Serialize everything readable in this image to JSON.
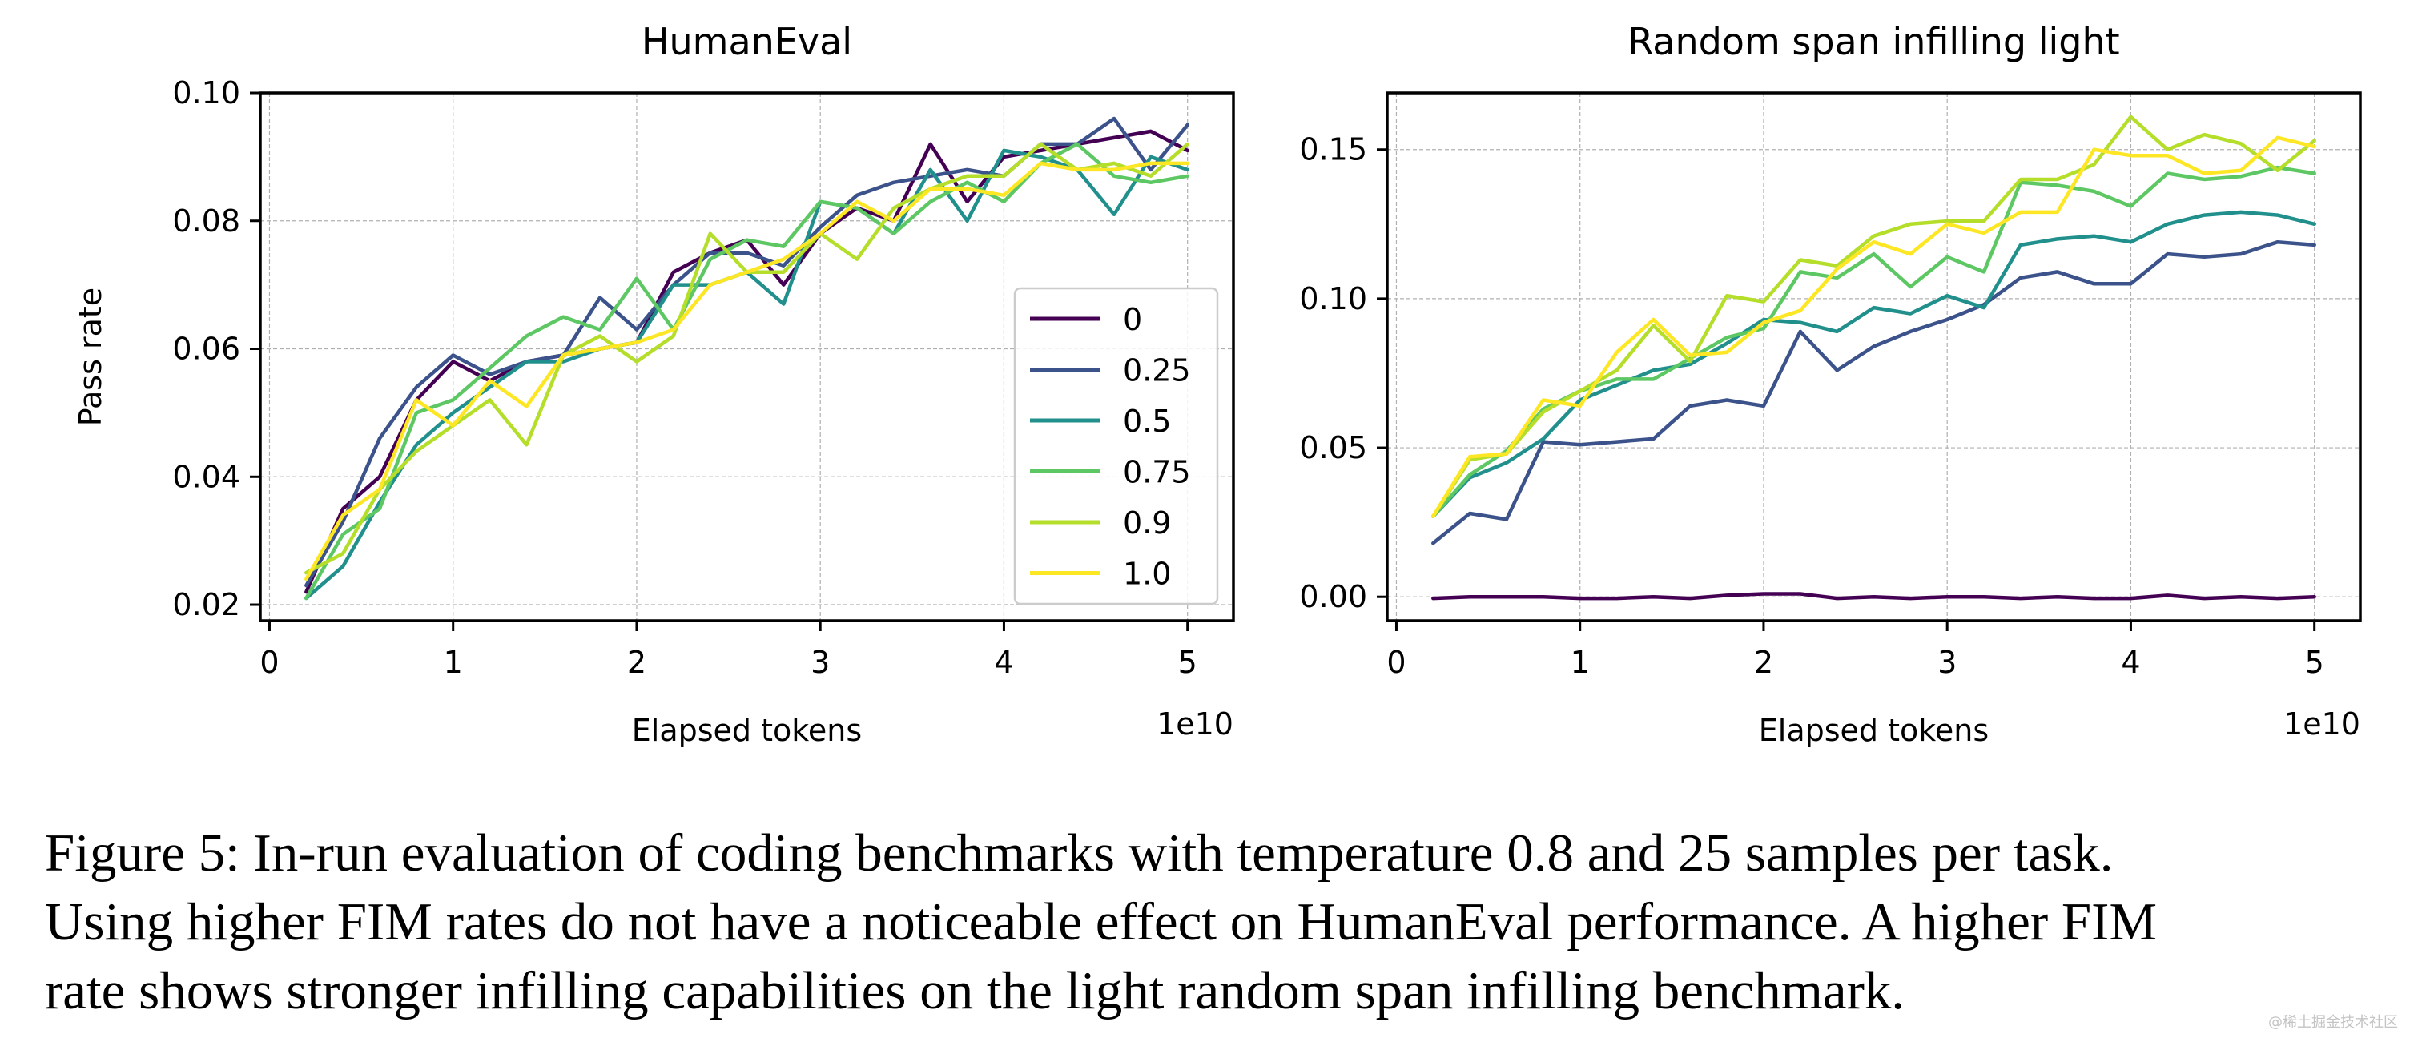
{
  "chart_data": [
    {
      "type": "line",
      "title": "HumanEval",
      "xlabel": "Elapsed tokens",
      "ylabel": "Pass rate",
      "x_multiplier_label": "1e10",
      "xlim": [
        -0.05,
        5.25
      ],
      "ylim": [
        0.0175,
        0.1
      ],
      "xticks": [
        0,
        1,
        2,
        3,
        4,
        5
      ],
      "xtick_labels": [
        "0",
        "1",
        "2",
        "3",
        "4",
        "5"
      ],
      "yticks": [
        0.02,
        0.04,
        0.06,
        0.08,
        0.1
      ],
      "ytick_labels": [
        "0.02",
        "0.04",
        "0.06",
        "0.08",
        "0.10"
      ],
      "grid": true,
      "legend": "lower-right",
      "x": [
        0.2,
        0.4,
        0.6,
        0.8,
        1.0,
        1.2,
        1.4,
        1.6,
        1.8,
        2.0,
        2.2,
        2.4,
        2.6,
        2.8,
        3.0,
        3.2,
        3.4,
        3.6,
        3.8,
        4.0,
        4.2,
        4.4,
        4.6,
        4.8,
        5.0
      ],
      "series": [
        {
          "name": "0",
          "color": "#440154",
          "values": [
            0.022,
            0.035,
            0.04,
            0.052,
            0.058,
            0.055,
            0.058,
            0.059,
            0.06,
            0.061,
            0.072,
            0.075,
            0.077,
            0.07,
            0.078,
            0.082,
            0.08,
            0.092,
            0.083,
            0.09,
            0.091,
            0.092,
            0.093,
            0.094,
            0.091
          ]
        },
        {
          "name": "0.25",
          "color": "#3b528b",
          "values": [
            0.023,
            0.033,
            0.046,
            0.054,
            0.059,
            0.056,
            0.058,
            0.059,
            0.068,
            0.063,
            0.07,
            0.075,
            0.075,
            0.073,
            0.079,
            0.084,
            0.086,
            0.087,
            0.088,
            0.087,
            0.092,
            0.092,
            0.096,
            0.088,
            0.095
          ]
        },
        {
          "name": "0.5",
          "color": "#21908d",
          "values": [
            0.021,
            0.026,
            0.036,
            0.045,
            0.05,
            0.054,
            0.058,
            0.058,
            0.06,
            0.061,
            0.07,
            0.07,
            0.072,
            0.067,
            0.083,
            0.082,
            0.078,
            0.088,
            0.08,
            0.091,
            0.09,
            0.088,
            0.081,
            0.09,
            0.088
          ]
        },
        {
          "name": "0.75",
          "color": "#5dc863",
          "values": [
            0.021,
            0.031,
            0.035,
            0.05,
            0.052,
            0.057,
            0.062,
            0.065,
            0.063,
            0.071,
            0.063,
            0.074,
            0.077,
            0.076,
            0.083,
            0.082,
            0.078,
            0.083,
            0.086,
            0.083,
            0.089,
            0.092,
            0.087,
            0.086,
            0.087
          ]
        },
        {
          "name": "0.9",
          "color": "#b5de2b",
          "values": [
            0.025,
            0.028,
            0.038,
            0.044,
            0.048,
            0.052,
            0.045,
            0.059,
            0.062,
            0.058,
            0.062,
            0.078,
            0.072,
            0.072,
            0.078,
            0.074,
            0.082,
            0.085,
            0.087,
            0.087,
            0.092,
            0.088,
            0.089,
            0.087,
            0.092
          ]
        },
        {
          "name": "1.0",
          "color": "#fde725",
          "values": [
            0.024,
            0.034,
            0.038,
            0.052,
            0.048,
            0.055,
            0.051,
            0.059,
            0.06,
            0.061,
            0.063,
            0.07,
            0.072,
            0.074,
            0.078,
            0.083,
            0.08,
            0.085,
            0.085,
            0.084,
            0.089,
            0.088,
            0.088,
            0.089,
            0.089
          ]
        }
      ]
    },
    {
      "type": "line",
      "title": "Random span infilling light",
      "xlabel": "Elapsed tokens",
      "ylabel": "",
      "x_multiplier_label": "1e10",
      "xlim": [
        -0.05,
        5.25
      ],
      "ylim": [
        -0.008,
        0.169
      ],
      "xticks": [
        0,
        1,
        2,
        3,
        4,
        5
      ],
      "xtick_labels": [
        "0",
        "1",
        "2",
        "3",
        "4",
        "5"
      ],
      "yticks": [
        0.0,
        0.05,
        0.1,
        0.15
      ],
      "ytick_labels": [
        "0.00",
        "0.05",
        "0.10",
        "0.15"
      ],
      "grid": true,
      "legend": "none",
      "x": [
        0.2,
        0.4,
        0.6,
        0.8,
        1.0,
        1.2,
        1.4,
        1.6,
        1.8,
        2.0,
        2.2,
        2.4,
        2.6,
        2.8,
        3.0,
        3.2,
        3.4,
        3.6,
        3.8,
        4.0,
        4.2,
        4.4,
        4.6,
        4.8,
        5.0
      ],
      "series": [
        {
          "name": "0",
          "color": "#440154",
          "values": [
            -0.0005,
            0.0,
            0.0,
            0.0,
            -0.0005,
            -0.0005,
            0.0,
            -0.0005,
            0.0005,
            0.001,
            0.001,
            -0.0005,
            0.0,
            -0.0005,
            0.0,
            0.0,
            -0.0005,
            0.0,
            -0.0005,
            -0.0005,
            0.0005,
            -0.0005,
            0.0,
            -0.0005,
            0.0
          ]
        },
        {
          "name": "0.25",
          "color": "#3b528b",
          "values": [
            0.018,
            0.028,
            0.026,
            0.052,
            0.051,
            0.052,
            0.053,
            0.064,
            0.066,
            0.064,
            0.089,
            0.076,
            0.084,
            0.089,
            0.093,
            0.098,
            0.107,
            0.109,
            0.105,
            0.105,
            0.115,
            0.114,
            0.115,
            0.119,
            0.118
          ]
        },
        {
          "name": "0.5",
          "color": "#21908d",
          "values": [
            0.027,
            0.04,
            0.045,
            0.053,
            0.066,
            0.071,
            0.076,
            0.078,
            0.085,
            0.093,
            0.092,
            0.089,
            0.097,
            0.095,
            0.101,
            0.097,
            0.118,
            0.12,
            0.121,
            0.119,
            0.125,
            0.128,
            0.129,
            0.128,
            0.125
          ]
        },
        {
          "name": "0.75",
          "color": "#5dc863",
          "values": [
            0.027,
            0.041,
            0.049,
            0.063,
            0.069,
            0.073,
            0.073,
            0.08,
            0.087,
            0.09,
            0.109,
            0.107,
            0.115,
            0.104,
            0.114,
            0.109,
            0.139,
            0.138,
            0.136,
            0.131,
            0.142,
            0.14,
            0.141,
            0.144,
            0.142
          ]
        },
        {
          "name": "0.9",
          "color": "#b5de2b",
          "values": [
            0.027,
            0.046,
            0.048,
            0.062,
            0.069,
            0.076,
            0.091,
            0.079,
            0.101,
            0.099,
            0.113,
            0.111,
            0.121,
            0.125,
            0.126,
            0.126,
            0.14,
            0.14,
            0.145,
            0.161,
            0.15,
            0.155,
            0.152,
            0.143,
            0.153
          ]
        },
        {
          "name": "1.0",
          "color": "#fde725",
          "values": [
            0.027,
            0.047,
            0.048,
            0.066,
            0.064,
            0.082,
            0.093,
            0.081,
            0.082,
            0.092,
            0.096,
            0.11,
            0.119,
            0.115,
            0.125,
            0.122,
            0.129,
            0.129,
            0.15,
            0.148,
            0.148,
            0.142,
            0.143,
            0.154,
            0.151
          ]
        }
      ]
    }
  ],
  "caption": {
    "lines": [
      "Figure 5: In-run evaluation of coding benchmarks with temperature 0.8 and 25 samples per task.",
      "Using higher FIM rates do not have a noticeable effect on HumanEval performance. A higher FIM",
      "rate shows stronger infilling capabilities on the light random span infilling benchmark."
    ]
  },
  "watermark": "@稀土掘金技术社区"
}
